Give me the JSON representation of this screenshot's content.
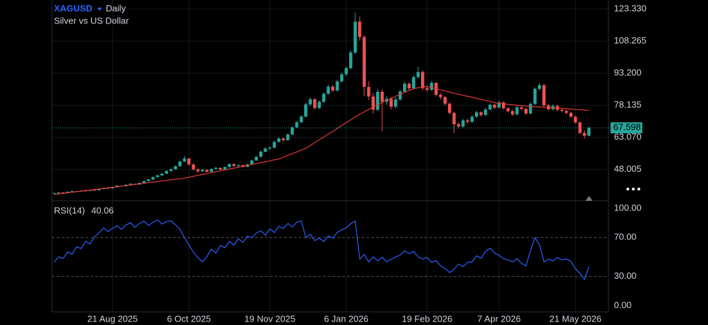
{
  "chart_data": {
    "type": "candlestick",
    "symbol": "XAGUSD",
    "interval": "Daily",
    "title": "Silver vs US Dollar",
    "up_color": "#26a69a",
    "down_color": "#ef5350",
    "grid": true,
    "ylim": [
      33.7,
      127.54
    ],
    "yticks": [
      {
        "value": 123.33,
        "label": "123.330"
      },
      {
        "value": 108.265,
        "label": "108.265"
      },
      {
        "value": 93.2,
        "label": "93.200"
      },
      {
        "value": 78.135,
        "label": "78.135"
      },
      {
        "value": 63.07,
        "label": "63.070"
      },
      {
        "value": 48.005,
        "label": "48.005"
      }
    ],
    "xticks": [
      {
        "value": 13,
        "label": "21 Aug 2025"
      },
      {
        "value": 30,
        "label": "6 Oct 2025"
      },
      {
        "value": 48,
        "label": "19 Nov 2025"
      },
      {
        "value": 65,
        "label": "6 Jan 2026"
      },
      {
        "value": 83,
        "label": "19 Feb 2026"
      },
      {
        "value": 99,
        "label": "7 Apr 2026"
      },
      {
        "value": 116,
        "label": "21 May 2026"
      }
    ],
    "ohlc": [
      [
        36.8,
        37.3,
        36.6,
        37.0
      ],
      [
        37.0,
        37.5,
        36.8,
        37.3
      ],
      [
        37.3,
        37.5,
        36.9,
        37.1
      ],
      [
        37.1,
        37.8,
        37.0,
        37.6
      ],
      [
        37.6,
        38.1,
        37.4,
        37.9
      ],
      [
        37.9,
        38.0,
        37.5,
        37.7
      ],
      [
        37.7,
        38.3,
        37.6,
        38.1
      ],
      [
        38.1,
        38.3,
        37.8,
        38.0
      ],
      [
        38.0,
        38.6,
        37.9,
        38.4
      ],
      [
        38.4,
        38.7,
        38.1,
        38.3
      ],
      [
        38.3,
        39.1,
        38.2,
        38.9
      ],
      [
        38.9,
        39.6,
        38.7,
        39.4
      ],
      [
        39.4,
        39.7,
        39.0,
        39.2
      ],
      [
        39.2,
        40.0,
        39.1,
        39.8
      ],
      [
        39.8,
        40.8,
        39.6,
        40.5
      ],
      [
        40.5,
        40.7,
        40.0,
        40.2
      ],
      [
        40.2,
        41.1,
        40.1,
        40.9
      ],
      [
        40.9,
        41.6,
        40.7,
        41.3
      ],
      [
        41.3,
        41.5,
        40.7,
        41.0
      ],
      [
        41.0,
        42.0,
        40.9,
        41.8
      ],
      [
        41.8,
        42.9,
        41.6,
        42.6
      ],
      [
        42.6,
        43.7,
        42.4,
        43.4
      ],
      [
        43.4,
        44.8,
        43.1,
        44.5
      ],
      [
        44.5,
        45.6,
        44.2,
        45.3
      ],
      [
        45.3,
        46.5,
        45.0,
        46.1
      ],
      [
        46.1,
        47.8,
        45.9,
        47.4
      ],
      [
        47.4,
        48.6,
        47.0,
        48.2
      ],
      [
        48.2,
        50.0,
        47.9,
        49.6
      ],
      [
        49.6,
        52.3,
        49.4,
        51.8
      ],
      [
        51.8,
        54.4,
        51.5,
        53.2
      ],
      [
        53.2,
        53.6,
        50.0,
        50.4
      ],
      [
        50.4,
        50.9,
        47.6,
        48.1
      ],
      [
        48.1,
        48.6,
        46.6,
        47.2
      ],
      [
        47.2,
        48.4,
        46.9,
        47.9
      ],
      [
        47.9,
        48.2,
        46.7,
        47.0
      ],
      [
        47.0,
        48.6,
        46.8,
        48.3
      ],
      [
        48.3,
        49.3,
        48.0,
        48.8
      ],
      [
        48.8,
        49.0,
        47.7,
        48.0
      ],
      [
        48.0,
        49.5,
        47.8,
        49.2
      ],
      [
        49.2,
        51.0,
        49.0,
        50.6
      ],
      [
        50.6,
        50.9,
        49.4,
        49.7
      ],
      [
        49.7,
        50.5,
        49.3,
        50.1
      ],
      [
        50.1,
        50.3,
        48.9,
        49.3
      ],
      [
        49.3,
        50.8,
        49.1,
        50.4
      ],
      [
        50.4,
        52.6,
        50.2,
        52.3
      ],
      [
        52.3,
        54.4,
        52.0,
        54.0
      ],
      [
        54.0,
        56.9,
        53.8,
        56.4
      ],
      [
        56.4,
        58.4,
        56.1,
        57.9
      ],
      [
        57.9,
        58.9,
        57.2,
        58.3
      ],
      [
        58.3,
        61.5,
        58.0,
        61.0
      ],
      [
        61.0,
        63.2,
        60.6,
        62.6
      ],
      [
        62.6,
        63.0,
        61.2,
        61.8
      ],
      [
        61.8,
        64.9,
        61.5,
        64.5
      ],
      [
        64.5,
        68.3,
        64.1,
        67.8
      ],
      [
        67.8,
        70.8,
        67.3,
        70.2
      ],
      [
        70.2,
        73.5,
        69.8,
        72.9
      ],
      [
        72.9,
        79.4,
        72.5,
        78.6
      ],
      [
        78.6,
        81.9,
        77.8,
        81.0
      ],
      [
        81.0,
        81.5,
        76.1,
        76.9
      ],
      [
        76.9,
        80.5,
        76.3,
        79.8
      ],
      [
        79.8,
        84.3,
        79.3,
        83.6
      ],
      [
        83.6,
        87.8,
        83.0,
        86.9
      ],
      [
        86.9,
        87.6,
        84.4,
        85.1
      ],
      [
        85.1,
        90.2,
        84.6,
        89.4
      ],
      [
        89.4,
        93.5,
        88.7,
        92.7
      ],
      [
        92.7,
        96.4,
        92.0,
        95.6
      ],
      [
        95.6,
        104.0,
        95.0,
        102.9
      ],
      [
        102.9,
        121.6,
        102.1,
        117.4
      ],
      [
        117.4,
        119.8,
        108.5,
        110.2
      ],
      [
        110.2,
        111.0,
        82.5,
        86.8
      ],
      [
        86.8,
        89.5,
        80.7,
        82.3
      ],
      [
        82.3,
        84.0,
        74.2,
        76.1
      ],
      [
        76.1,
        86.0,
        75.3,
        84.5
      ],
      [
        84.5,
        85.6,
        66.0,
        79.8
      ],
      [
        79.8,
        82.5,
        78.4,
        81.2
      ],
      [
        81.2,
        82.0,
        76.2,
        77.5
      ],
      [
        77.5,
        81.9,
        76.8,
        80.9
      ],
      [
        80.9,
        85.5,
        80.2,
        84.6
      ],
      [
        84.6,
        89.2,
        84.0,
        88.3
      ],
      [
        88.3,
        89.0,
        85.2,
        86.1
      ],
      [
        86.1,
        92.3,
        85.6,
        91.4
      ],
      [
        91.4,
        96.2,
        90.8,
        93.8
      ],
      [
        93.8,
        94.5,
        85.3,
        86.2
      ],
      [
        86.2,
        87.4,
        84.5,
        85.4
      ],
      [
        85.4,
        89.6,
        84.9,
        88.7
      ],
      [
        88.7,
        89.1,
        82.4,
        83.1
      ],
      [
        83.1,
        84.0,
        80.9,
        82.0
      ],
      [
        82.0,
        82.6,
        78.1,
        78.9
      ],
      [
        78.9,
        79.5,
        73.8,
        74.6
      ],
      [
        74.6,
        75.2,
        65.0,
        69.3
      ],
      [
        69.3,
        70.1,
        67.2,
        68.2
      ],
      [
        68.2,
        71.8,
        67.6,
        71.1
      ],
      [
        71.1,
        72.0,
        69.5,
        70.4
      ],
      [
        70.4,
        73.5,
        70.0,
        72.8
      ],
      [
        72.8,
        75.6,
        72.3,
        74.9
      ],
      [
        74.9,
        75.3,
        72.9,
        73.6
      ],
      [
        73.6,
        77.0,
        73.2,
        76.2
      ],
      [
        76.2,
        79.1,
        75.8,
        78.4
      ],
      [
        78.4,
        79.0,
        76.5,
        77.1
      ],
      [
        77.1,
        80.3,
        76.8,
        79.5
      ],
      [
        79.5,
        80.0,
        76.2,
        76.8
      ],
      [
        76.8,
        77.3,
        74.8,
        75.4
      ],
      [
        75.4,
        76.0,
        73.2,
        73.9
      ],
      [
        73.9,
        77.9,
        73.5,
        77.2
      ],
      [
        77.2,
        77.8,
        75.9,
        76.5
      ],
      [
        76.5,
        76.9,
        73.6,
        74.3
      ],
      [
        74.3,
        79.5,
        73.9,
        78.8
      ],
      [
        78.8,
        86.6,
        78.3,
        85.9
      ],
      [
        85.9,
        88.7,
        84.9,
        87.6
      ],
      [
        87.6,
        88.1,
        77.5,
        78.1
      ],
      [
        78.1,
        78.9,
        75.6,
        76.3
      ],
      [
        76.3,
        78.6,
        75.9,
        77.9
      ],
      [
        77.9,
        78.3,
        75.4,
        76.0
      ],
      [
        76.0,
        76.8,
        74.9,
        75.5
      ],
      [
        75.5,
        76.2,
        73.9,
        74.6
      ],
      [
        74.6,
        75.1,
        72.3,
        72.8
      ],
      [
        72.8,
        73.4,
        69.6,
        70.1
      ],
      [
        70.1,
        70.6,
        64.7,
        65.2
      ],
      [
        65.2,
        66.4,
        62.5,
        63.9
      ],
      [
        63.9,
        68.1,
        63.6,
        67.598
      ]
    ],
    "ma": {
      "color": "#e53935",
      "values": [
        36.3,
        36.6,
        36.8,
        37.1,
        37.4,
        37.6,
        37.9,
        38.2,
        38.4,
        38.7,
        38.9,
        39.2,
        39.5,
        39.7,
        40.0,
        40.3,
        40.5,
        40.8,
        41.1,
        41.3,
        41.6,
        41.9,
        42.1,
        42.4,
        42.7,
        42.9,
        43.2,
        43.5,
        43.7,
        44.0,
        44.4,
        44.9,
        45.3,
        45.7,
        46.1,
        46.6,
        47.0,
        47.4,
        47.9,
        48.3,
        48.7,
        49.1,
        49.6,
        50.0,
        50.4,
        50.9,
        51.3,
        51.7,
        52.1,
        52.6,
        53.0,
        53.8,
        54.7,
        55.5,
        56.3,
        57.2,
        58.0,
        59.3,
        60.7,
        62.0,
        63.3,
        64.7,
        66.0,
        67.3,
        68.7,
        70.0,
        71.3,
        72.7,
        74.0,
        75.1,
        76.2,
        77.3,
        78.4,
        79.5,
        80.6,
        81.5,
        82.4,
        83.3,
        84.2,
        85.1,
        86.0,
        86.4,
        86.7,
        87.0,
        86.5,
        85.9,
        85.4,
        84.9,
        84.3,
        83.8,
        83.3,
        82.8,
        82.4,
        81.9,
        81.4,
        80.9,
        80.4,
        79.9,
        79.5,
        79.0,
        78.8,
        78.6,
        78.4,
        78.2,
        78.0,
        77.8,
        77.6,
        77.5,
        77.4,
        77.3,
        77.1,
        77.0,
        76.8,
        76.7,
        76.5,
        76.4,
        76.2,
        76.1,
        75.9,
        75.8
      ]
    },
    "price_line_color": "#26a69a",
    "rsi": {
      "label": "RSI(14)",
      "color": "#2962ff",
      "ylim": [
        -6.4,
        107.1
      ],
      "yticks": [
        {
          "value": 100,
          "label": "100.00"
        },
        {
          "value": 70,
          "label": "70.00"
        },
        {
          "value": 30,
          "label": "30.00"
        },
        {
          "value": 0,
          "label": "0.00"
        }
      ],
      "levels": [
        70,
        30
      ],
      "values": [
        44.7,
        50.2,
        48.5,
        55.1,
        53.0,
        60.4,
        58.8,
        66.2,
        63.5,
        71.0,
        74.8,
        80.0,
        76.3,
        79.5,
        82.1,
        78.4,
        83.0,
        85.2,
        80.6,
        84.7,
        86.9,
        82.3,
        85.8,
        88.1,
        84.0,
        86.4,
        87.0,
        83.2,
        78.5,
        70.0,
        62.4,
        54.8,
        49.3,
        45.0,
        50.6,
        58.2,
        54.1,
        61.8,
        59.5,
        66.0,
        62.3,
        68.7,
        65.1,
        71.4,
        69.8,
        74.6,
        77.0,
        72.5,
        78.9,
        75.2,
        81.6,
        79.3,
        84.5,
        80.8,
        85.9,
        87.0,
        70.0,
        73.4,
        66.8,
        69.5,
        66.0,
        71.8,
        69.2,
        75.4,
        78.1,
        80.0,
        84.3,
        87.0,
        48.0,
        52.6,
        44.9,
        50.3,
        46.1,
        49.8,
        45.0,
        47.6,
        50.1,
        52.0,
        56.3,
        53.5,
        55.8,
        50.2,
        47.9,
        49.5,
        44.6,
        46.3,
        41.0,
        38.2,
        34.0,
        37.5,
        42.8,
        40.1,
        44.6,
        45.0,
        51.3,
        48.7,
        55.9,
        59.0,
        54.2,
        51.8,
        48.3,
        46.7,
        45.0,
        48.2,
        43.5,
        41.0,
        56.8,
        70.0,
        62.4,
        45.0,
        47.8,
        46.2,
        49.5,
        47.1,
        48.0,
        45.3,
        38.0,
        33.2,
        27.0,
        40.06
      ]
    }
  }
}
